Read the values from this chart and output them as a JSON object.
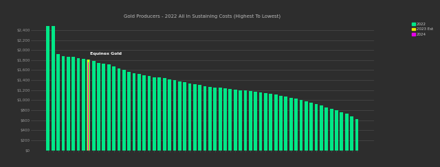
{
  "title": "Gold Producers - 2022 All In Sustaining Costs (Highest To Lowest)",
  "background_color": "#2d2d2d",
  "plot_bg_color": "#2d2d2d",
  "bar_color_2022": "#00e887",
  "bar_color_2023": "#e8e800",
  "bar_color_2024": "#e800e8",
  "annotation_text": "Equinox Gold",
  "annotation_color": "#ffffff",
  "grid_color": "#4a4a4a",
  "ytick_color": "#999999",
  "xtick_color": "#777777",
  "title_color": "#bbbbbb",
  "legend_2022": "2022",
  "legend_2023": "2023 Est",
  "legend_2024": "2024",
  "ylim": [
    0,
    2600
  ],
  "yticks": [
    0,
    200,
    400,
    600,
    800,
    1000,
    1200,
    1400,
    1600,
    1800,
    2000,
    2200,
    2400
  ],
  "equinox_index": 8,
  "values_2022": [
    2480,
    2480,
    1920,
    1880,
    1870,
    1860,
    1840,
    1830,
    1810,
    1790,
    1750,
    1730,
    1710,
    1670,
    1640,
    1600,
    1560,
    1540,
    1520,
    1500,
    1480,
    1460,
    1450,
    1440,
    1420,
    1400,
    1380,
    1360,
    1340,
    1320,
    1300,
    1285,
    1270,
    1255,
    1245,
    1235,
    1220,
    1210,
    1200,
    1190,
    1180,
    1170,
    1155,
    1140,
    1125,
    1110,
    1090,
    1070,
    1050,
    1030,
    1005,
    980,
    950,
    920,
    890,
    860,
    830,
    800,
    765,
    730,
    680,
    620
  ],
  "equinox_2022_val": 1810,
  "num_bars": 62
}
